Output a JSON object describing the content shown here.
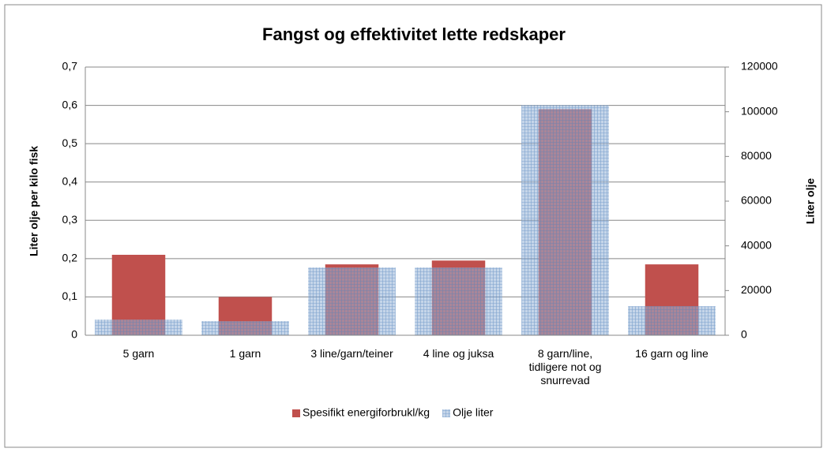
{
  "chart_data": {
    "type": "bar",
    "title": "Fangst og effektivitet lette redskaper",
    "categories": [
      "5 garn",
      "1 garn",
      "3 line/garn/teiner",
      "4 line og juksa",
      "8 garn/line, tidligere not og snurrevad",
      "16 garn og line"
    ],
    "y_label": "Liter olje per kilo fisk",
    "y2_label": "Liter olje",
    "series": [
      {
        "name": "Spesifikt energiforbrukl/kg",
        "color": "#c0504d",
        "values": [
          0.21,
          0.1,
          0.185,
          0.195,
          0.59,
          0.185
        ]
      },
      {
        "name": "Olje liter",
        "color": "#95b3d7",
        "axis": "y2",
        "values": [
          7000,
          6300,
          30300,
          30300,
          103000,
          13000
        ]
      }
    ],
    "ylim": [
      0,
      0.7
    ],
    "yticks": [
      0,
      {
        "value": 0.1,
        "label": "0,1"
      },
      {
        "value": 0.2,
        "label": "0,2"
      },
      {
        "value": 0.3,
        "label": "0,3"
      },
      {
        "value": 0.4,
        "label": "0,4"
      },
      {
        "value": 0.5,
        "label": "0,5"
      },
      {
        "value": 0.6,
        "label": "0,6"
      },
      {
        "value": 0.7,
        "label": "0,7"
      }
    ],
    "y2lim": [
      0,
      120000
    ],
    "y2ticks": [
      0,
      20000,
      40000,
      60000,
      80000,
      100000,
      120000
    ],
    "grid": true,
    "legend": "bottom"
  }
}
